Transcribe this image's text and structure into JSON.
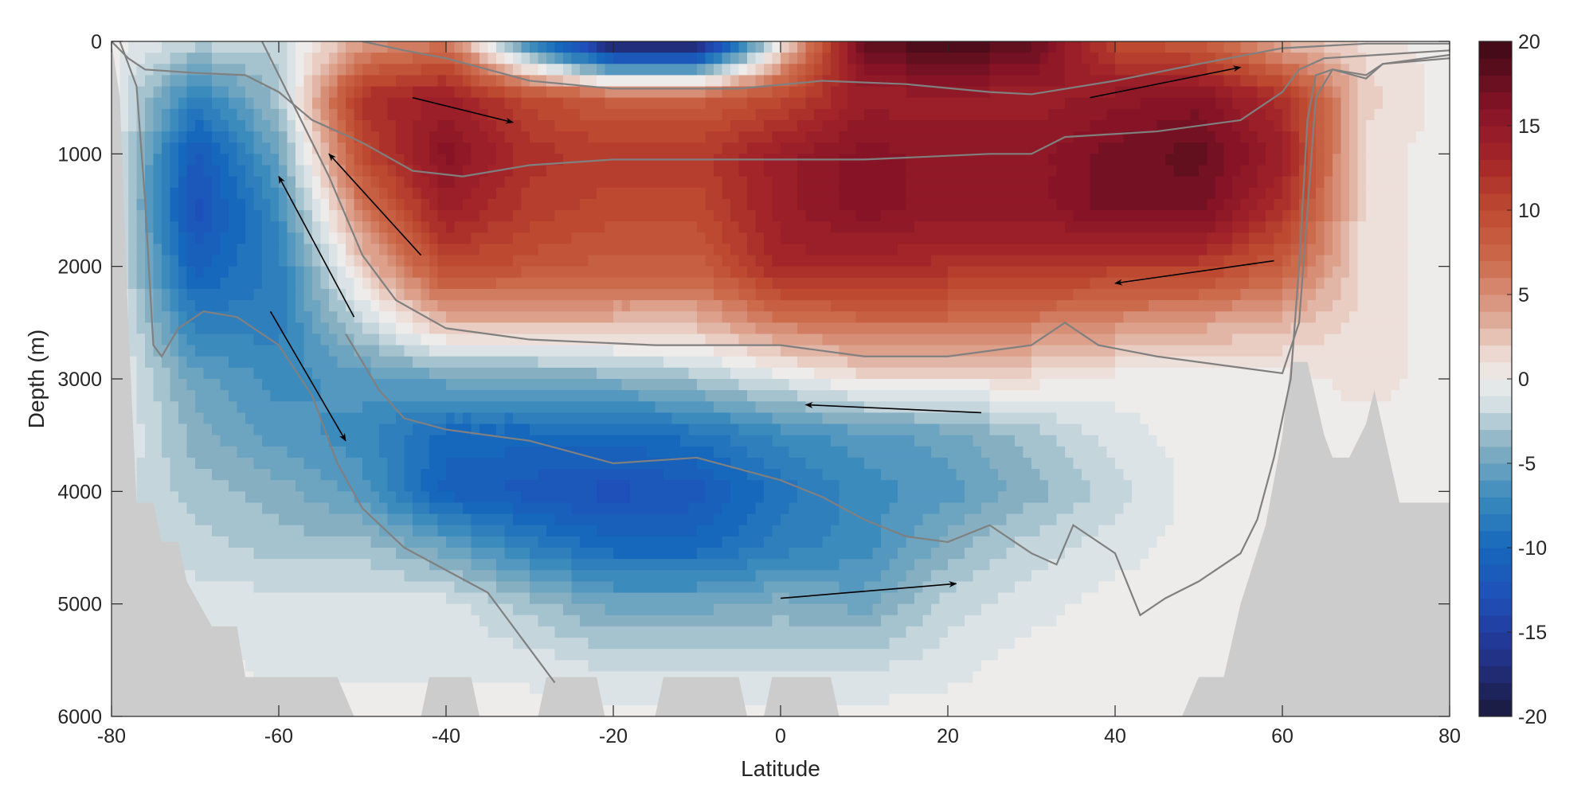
{
  "chart_data": {
    "type": "heatmap",
    "subtype": "filled-contour",
    "title": "",
    "xlabel": "Latitude",
    "ylabel": "Depth (m)",
    "xlim": [
      -80,
      80
    ],
    "ylim": [
      0,
      6000
    ],
    "y_reversed": true,
    "xticks": [
      -80,
      -60,
      -40,
      -20,
      0,
      20,
      40,
      60,
      80
    ],
    "yticks": [
      0,
      1000,
      2000,
      3000,
      4000,
      5000,
      6000
    ],
    "colorbar": {
      "range": [
        -20,
        20
      ],
      "ticks": [
        -20,
        -15,
        -10,
        -5,
        0,
        5,
        10,
        15,
        20
      ],
      "level_step": 1,
      "colormap_stops": [
        [
          -20,
          "#1a1a3c"
        ],
        [
          -16,
          "#233590"
        ],
        [
          -13,
          "#1f4fb8"
        ],
        [
          -10,
          "#1668bd"
        ],
        [
          -7,
          "#3b8bbd"
        ],
        [
          -4,
          "#86b0c2"
        ],
        [
          -1.5,
          "#d3dfe3"
        ],
        [
          0,
          "#eeeceb"
        ],
        [
          1.5,
          "#ecd8d0"
        ],
        [
          4,
          "#dca08b"
        ],
        [
          7,
          "#cc6a4c"
        ],
        [
          10,
          "#bd4a30"
        ],
        [
          13,
          "#a42529"
        ],
        [
          16,
          "#861326"
        ],
        [
          20,
          "#3d0a16"
        ]
      ]
    },
    "grid": {
      "lat": [
        -80,
        -70,
        -60,
        -50,
        -40,
        -30,
        -20,
        -10,
        0,
        10,
        20,
        30,
        40,
        50,
        60,
        70,
        80
      ],
      "depth": [
        0,
        500,
        1000,
        1500,
        2000,
        2500,
        3000,
        3500,
        4000,
        4500,
        5000,
        5500,
        6000
      ],
      "values": [
        [
          0,
          -2,
          -2,
          4,
          6,
          -8,
          -20,
          -20,
          0,
          18,
          20,
          18,
          10,
          8,
          3,
          1,
          0
        ],
        [
          0,
          -8,
          -3,
          12,
          14,
          10,
          8,
          8,
          10,
          14,
          14,
          14,
          15,
          16,
          12,
          2,
          0
        ],
        [
          0,
          -12,
          -5,
          10,
          16,
          12,
          11,
          11,
          14,
          16,
          15,
          15,
          17,
          18,
          14,
          1,
          0
        ],
        [
          0,
          -13,
          -7,
          6,
          14,
          11,
          10,
          10,
          14,
          16,
          15,
          15,
          17,
          17,
          12,
          1,
          0
        ],
        [
          0,
          -11,
          -8,
          2,
          10,
          9,
          8,
          8,
          13,
          13,
          12,
          12,
          11,
          11,
          8,
          1,
          0
        ],
        [
          0,
          -8,
          -8,
          -2,
          3,
          3,
          3,
          3,
          6,
          7,
          7,
          6,
          5,
          4,
          3,
          1,
          0
        ],
        [
          0,
          -5,
          -7,
          -6,
          -5,
          -5,
          -4,
          -3,
          -1,
          1,
          1,
          1,
          0,
          0,
          0,
          1,
          0
        ],
        [
          0,
          -4,
          -6,
          -7,
          -10,
          -10,
          -10,
          -9,
          -7,
          -6,
          -5,
          -3,
          -1,
          0,
          0,
          0,
          0
        ],
        [
          -1,
          -3,
          -4,
          -6,
          -11,
          -12,
          -13,
          -12,
          -9,
          -7,
          -6,
          -4,
          -2,
          0,
          0,
          0,
          0
        ],
        [
          -1,
          -2,
          -3,
          -3,
          -5,
          -8,
          -10,
          -10,
          -8,
          -7,
          -4,
          -2,
          -1,
          0,
          0,
          0,
          0
        ],
        [
          -1,
          -1,
          -1,
          -1,
          -1,
          -3,
          -5,
          -5,
          -4,
          -5,
          -2,
          -1,
          0,
          0,
          0,
          0,
          0
        ],
        [
          -1,
          0,
          -1,
          -1,
          -1,
          -1,
          -2,
          -2,
          -2,
          -2,
          -1,
          0,
          0,
          0,
          0,
          0,
          0
        ],
        [
          0,
          0,
          0,
          0,
          0,
          0,
          0,
          0,
          0,
          0,
          0,
          0,
          0,
          0,
          0,
          0,
          0
        ]
      ]
    },
    "bathymetry": [
      [
        [
          -80,
          0
        ],
        [
          -79,
          500
        ],
        [
          -78,
          2500
        ],
        [
          -77,
          4100
        ],
        [
          -75,
          4100
        ],
        [
          -74,
          4450
        ],
        [
          -72,
          4450
        ],
        [
          -71,
          4800
        ],
        [
          -68,
          5200
        ],
        [
          -65,
          5200
        ],
        [
          -64,
          5650
        ],
        [
          -53,
          5650
        ],
        [
          -51,
          6000
        ],
        [
          -80,
          6000
        ]
      ],
      [
        [
          -43,
          6000
        ],
        [
          -42,
          5650
        ],
        [
          -37,
          5650
        ],
        [
          -36,
          6000
        ]
      ],
      [
        [
          -29,
          6000
        ],
        [
          -28,
          5650
        ],
        [
          -22,
          5650
        ],
        [
          -21,
          6000
        ]
      ],
      [
        [
          -15,
          6000
        ],
        [
          -14,
          5650
        ],
        [
          -5,
          5650
        ],
        [
          -4,
          6000
        ]
      ],
      [
        [
          -2,
          6000
        ],
        [
          -1,
          5650
        ],
        [
          6,
          5650
        ],
        [
          7,
          6000
        ]
      ],
      [
        [
          48,
          6000
        ],
        [
          50,
          5650
        ],
        [
          53,
          5650
        ],
        [
          55,
          5000
        ],
        [
          58,
          4300
        ],
        [
          60,
          3500
        ],
        [
          61,
          2850
        ],
        [
          63,
          2850
        ],
        [
          65,
          3500
        ],
        [
          66,
          3700
        ],
        [
          68,
          3700
        ],
        [
          70,
          3400
        ],
        [
          71,
          3100
        ],
        [
          74,
          4100
        ],
        [
          80,
          4100
        ],
        [
          80,
          6000
        ]
      ]
    ],
    "contour_lines": [
      [
        [
          -50,
          0
        ],
        [
          -45,
          80
        ],
        [
          -40,
          150
        ],
        [
          -30,
          350
        ],
        [
          -20,
          420
        ],
        [
          -5,
          420
        ],
        [
          5,
          350
        ],
        [
          15,
          380
        ],
        [
          25,
          450
        ],
        [
          30,
          470
        ],
        [
          40,
          350
        ],
        [
          50,
          200
        ],
        [
          60,
          60
        ],
        [
          70,
          20
        ],
        [
          80,
          20
        ]
      ],
      [
        [
          -80,
          0
        ],
        [
          -78,
          150
        ],
        [
          -76,
          250
        ],
        [
          -70,
          280
        ],
        [
          -64,
          300
        ],
        [
          -60,
          450
        ],
        [
          -56,
          700
        ],
        [
          -50,
          900
        ],
        [
          -44,
          1150
        ],
        [
          -38,
          1200
        ],
        [
          -30,
          1100
        ],
        [
          -20,
          1050
        ],
        [
          0,
          1050
        ],
        [
          10,
          1050
        ],
        [
          25,
          1000
        ],
        [
          30,
          1000
        ],
        [
          34,
          850
        ],
        [
          45,
          800
        ],
        [
          55,
          700
        ],
        [
          60,
          450
        ],
        [
          62,
          250
        ],
        [
          65,
          150
        ],
        [
          80,
          80
        ]
      ],
      [
        [
          -62,
          0
        ],
        [
          -58,
          600
        ],
        [
          -54,
          1200
        ],
        [
          -50,
          1900
        ],
        [
          -46,
          2300
        ],
        [
          -40,
          2550
        ],
        [
          -30,
          2650
        ],
        [
          -15,
          2700
        ],
        [
          0,
          2700
        ],
        [
          10,
          2800
        ],
        [
          20,
          2800
        ],
        [
          30,
          2700
        ],
        [
          34,
          2500
        ],
        [
          38,
          2700
        ],
        [
          45,
          2800
        ],
        [
          55,
          2900
        ],
        [
          60,
          2950
        ],
        [
          62,
          2500
        ],
        [
          63,
          1500
        ],
        [
          64,
          500
        ],
        [
          66,
          250
        ],
        [
          70,
          300
        ],
        [
          72,
          200
        ],
        [
          80,
          150
        ]
      ],
      [
        [
          -79,
          0
        ],
        [
          -77,
          400
        ],
        [
          -76,
          1400
        ],
        [
          -75,
          2700
        ],
        [
          -74,
          2800
        ],
        [
          -72,
          2550
        ],
        [
          -69,
          2400
        ],
        [
          -65,
          2450
        ],
        [
          -60,
          2700
        ],
        [
          -56,
          3150
        ],
        [
          -53,
          3750
        ],
        [
          -50,
          4150
        ],
        [
          -45,
          4500
        ],
        [
          -40,
          4700
        ],
        [
          -35,
          4900
        ],
        [
          -30,
          5400
        ],
        [
          -27,
          5700
        ]
      ],
      [
        [
          -52,
          2600
        ],
        [
          -48,
          3100
        ],
        [
          -45,
          3350
        ],
        [
          -40,
          3450
        ],
        [
          -30,
          3550
        ],
        [
          -20,
          3750
        ],
        [
          -10,
          3700
        ],
        [
          0,
          3900
        ],
        [
          5,
          4050
        ],
        [
          10,
          4250
        ],
        [
          15,
          4400
        ],
        [
          20,
          4450
        ],
        [
          25,
          4300
        ],
        [
          30,
          4550
        ],
        [
          33,
          4650
        ],
        [
          35,
          4300
        ],
        [
          40,
          4550
        ],
        [
          43,
          5100
        ],
        [
          46,
          4950
        ],
        [
          50,
          4800
        ],
        [
          55,
          4550
        ],
        [
          57,
          4250
        ],
        [
          59,
          3700
        ],
        [
          61,
          3000
        ],
        [
          62,
          2000
        ],
        [
          63,
          700
        ],
        [
          64,
          300
        ],
        [
          66,
          250
        ],
        [
          70,
          330
        ],
        [
          72,
          200
        ],
        [
          80,
          120
        ]
      ]
    ],
    "arrows": [
      [
        [
          -44,
          500
        ],
        [
          -32,
          720
        ]
      ],
      [
        [
          -43,
          1900
        ],
        [
          -54,
          1000
        ]
      ],
      [
        [
          -51,
          2450
        ],
        [
          -60,
          1200
        ]
      ],
      [
        [
          -61,
          2400
        ],
        [
          -52,
          3550
        ]
      ],
      [
        [
          37,
          500
        ],
        [
          55,
          230
        ]
      ],
      [
        [
          59,
          1950
        ],
        [
          40,
          2150
        ]
      ],
      [
        [
          24,
          3300
        ],
        [
          3,
          3230
        ]
      ],
      [
        [
          0,
          4950
        ],
        [
          21,
          4820
        ]
      ]
    ],
    "colors": {
      "contour": "#808080",
      "land": "#cccccc",
      "axis": "#262626",
      "arrow": "#000000"
    }
  }
}
